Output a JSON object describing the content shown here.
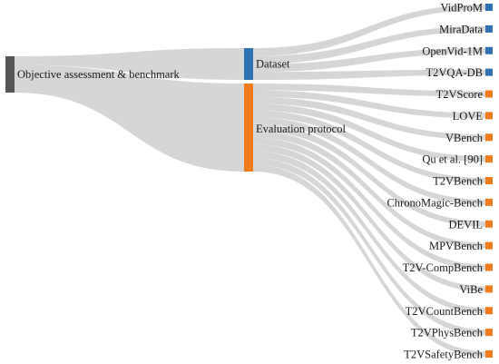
{
  "diagram": {
    "type": "sankey",
    "colors": {
      "root": "#555555",
      "dataset": "#2f72b3",
      "evaluation": "#f27b1c",
      "link": "#cfcfcf"
    },
    "root": {
      "label": "Objective assessment & benchmark"
    },
    "groups": [
      {
        "id": "dataset",
        "label": "Dataset",
        "leaves": [
          "VidProM",
          "MiraData",
          "OpenVid-1M",
          "T2VQA-DB"
        ]
      },
      {
        "id": "evaluation",
        "label": "Evaluation protocol",
        "leaves": [
          "T2VScore",
          "LOVE",
          "VBench",
          "Qu et al. [90]",
          "T2VBench",
          "ChronoMagic-Bench",
          "DEVIL",
          "MPVBench",
          "T2V-CompBench",
          "ViBe",
          "T2VCountBench",
          "T2VPhysBench",
          "T2VSafetyBench"
        ]
      }
    ]
  }
}
